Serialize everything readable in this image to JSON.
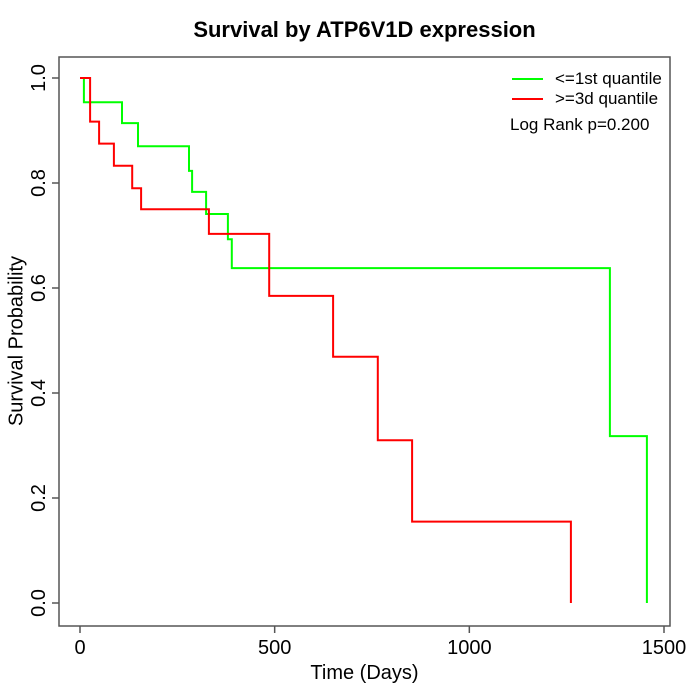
{
  "title": "Survival by ATP6V1D expression",
  "chart_data": {
    "type": "line",
    "variant": "kaplan-meier-step",
    "title": "Survival by ATP6V1D expression",
    "xlabel": "Time (Days)",
    "ylabel": "Survival Probability",
    "xlim": [
      0,
      1500
    ],
    "ylim": [
      0.0,
      1.0
    ],
    "x_ticks": [
      "0",
      "500",
      "1000",
      "1500"
    ],
    "y_ticks": [
      "0.0",
      "0.2",
      "0.4",
      "0.6",
      "0.8",
      "1.0"
    ],
    "grid": false,
    "legend_position": "top-right",
    "annotation": "Log Rank p=0.200",
    "axis_color": "#555555",
    "text_color": "#000000",
    "series": [
      {
        "name": "<=1st quantile",
        "color": "#00ff00",
        "step_points": [
          [
            0,
            1.0
          ],
          [
            10,
            0.954
          ],
          [
            108,
            0.914
          ],
          [
            149,
            0.87
          ],
          [
            280,
            0.823
          ],
          [
            288,
            0.783
          ],
          [
            324,
            0.741
          ],
          [
            380,
            0.693
          ],
          [
            390,
            0.638
          ],
          [
            1361,
            0.318
          ],
          [
            1456,
            0.0
          ]
        ]
      },
      {
        "name": ">=3d quantile",
        "color": "#ff0000",
        "step_points": [
          [
            0,
            1.0
          ],
          [
            26,
            0.917
          ],
          [
            49,
            0.875
          ],
          [
            87,
            0.833
          ],
          [
            134,
            0.79
          ],
          [
            157,
            0.75
          ],
          [
            331,
            0.703
          ],
          [
            486,
            0.585
          ],
          [
            650,
            0.469
          ],
          [
            765,
            0.31
          ],
          [
            853,
            0.155
          ],
          [
            1261,
            0.0
          ]
        ]
      }
    ]
  }
}
